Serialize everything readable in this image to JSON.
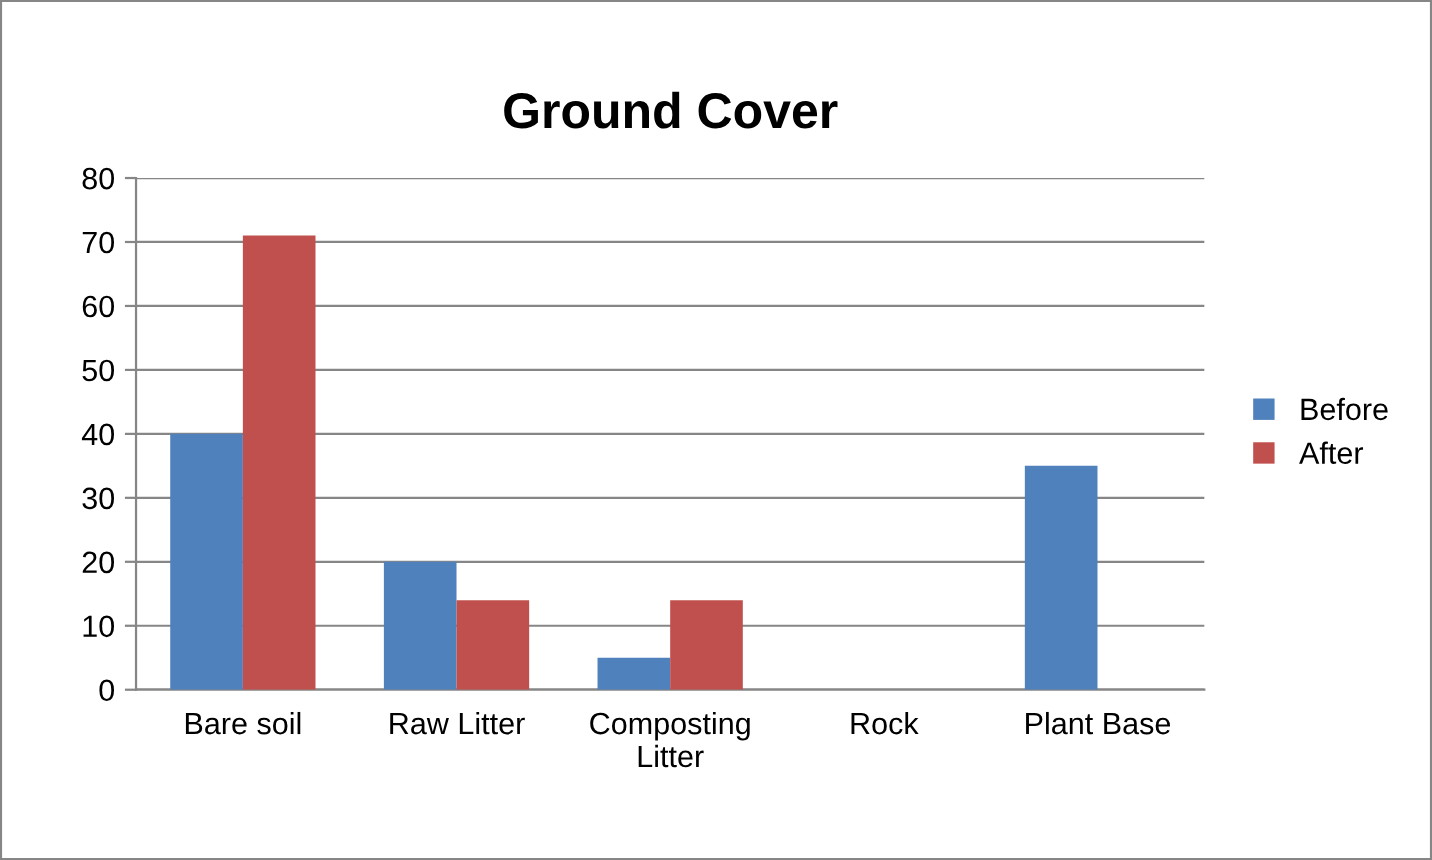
{
  "chart_data": {
    "type": "bar",
    "title": "Ground Cover",
    "categories": [
      "Bare soil",
      "Raw Litter",
      "Composting Litter",
      "Rock",
      "Plant Base"
    ],
    "series": [
      {
        "name": "Before",
        "color": "#4f81bd",
        "values": [
          40,
          20,
          5,
          0,
          35
        ]
      },
      {
        "name": "After",
        "color": "#c0504d",
        "values": [
          71,
          14,
          14,
          0,
          0
        ]
      }
    ],
    "ylim": [
      0,
      80
    ],
    "yticks": [
      0,
      10,
      20,
      30,
      40,
      50,
      60,
      70,
      80
    ],
    "grid": "y",
    "legend": "right"
  }
}
